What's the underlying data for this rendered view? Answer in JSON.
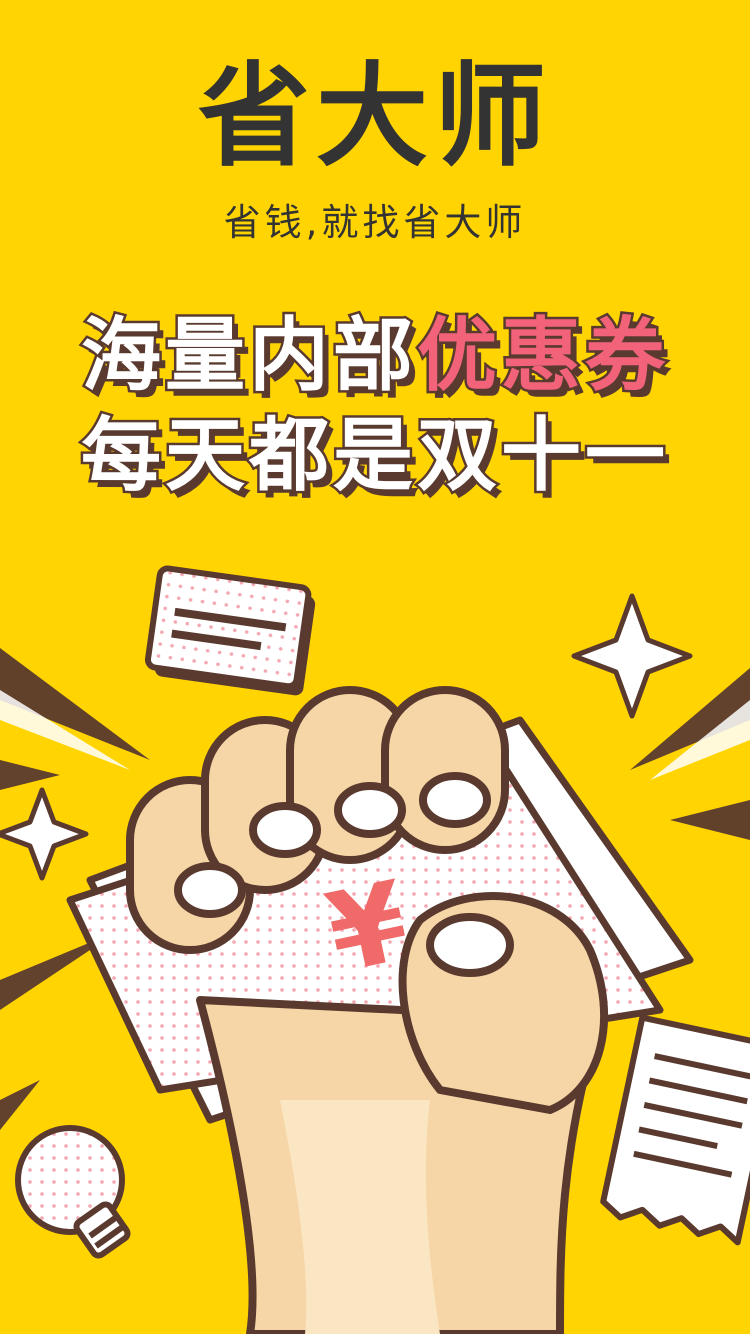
{
  "brand": {
    "logo_text": "省大师",
    "tagline": "省钱,就找省大师"
  },
  "headline": {
    "line1_plain": "海量内部",
    "line1_accent": "优惠券",
    "line2": "每天都是双十一"
  },
  "illustration": {
    "currency_symbol": "¥",
    "icons": [
      "fist-icon",
      "coupon-icon",
      "sparkle-icon",
      "lightbulb-icon",
      "receipt-icon"
    ]
  },
  "colors": {
    "background": "#FFD400",
    "outline": "#5A3A2E",
    "accent": "#F2637A",
    "skin": "#F6D6A6",
    "text_dark": "#333333"
  }
}
